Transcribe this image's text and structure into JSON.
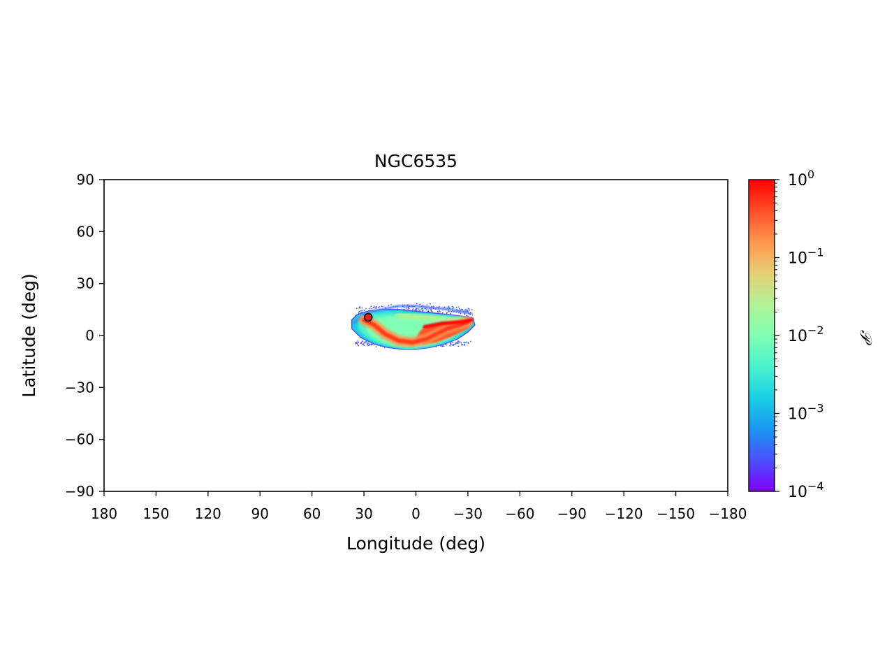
{
  "chart_data": {
    "type": "scatter",
    "title": "NGC6535",
    "xlabel": "Longitude (deg)",
    "ylabel": "Latitude (deg)",
    "xlim": [
      180,
      -180
    ],
    "ylim": [
      -90,
      90
    ],
    "xticks": [
      180,
      150,
      120,
      90,
      60,
      30,
      0,
      -30,
      -60,
      -90,
      -120,
      -150,
      -180
    ],
    "xtick_labels": [
      "180",
      "150",
      "120",
      "90",
      "60",
      "30",
      "0",
      "−30",
      "−60",
      "−90",
      "−120",
      "−150",
      "−180"
    ],
    "yticks": [
      90,
      60,
      30,
      0,
      -30,
      -60,
      -90
    ],
    "ytick_labels": [
      "90",
      "60",
      "30",
      "0",
      "−30",
      "−60",
      "−90"
    ],
    "colorbar": {
      "label": "𝒫",
      "scale": "log",
      "range": [
        0.0001,
        1
      ],
      "colormap": "rainbow",
      "ticks": [
        {
          "value": 1,
          "base": "10",
          "exp": "0"
        },
        {
          "value": 0.1,
          "base": "10",
          "exp": "−1"
        },
        {
          "value": 0.01,
          "base": "10",
          "exp": "−2"
        },
        {
          "value": 0.001,
          "base": "10",
          "exp": "−3"
        },
        {
          "value": 0.0001,
          "base": "10",
          "exp": "−4"
        }
      ]
    },
    "density_region": {
      "outline": [
        [
          37,
          9
        ],
        [
          34,
          12
        ],
        [
          28,
          14
        ],
        [
          20,
          15
        ],
        [
          10,
          15
        ],
        [
          0,
          14
        ],
        [
          -10,
          13
        ],
        [
          -20,
          12
        ],
        [
          -28,
          11
        ],
        [
          -33,
          10
        ],
        [
          -34,
          6
        ],
        [
          -30,
          2
        ],
        [
          -24,
          -2
        ],
        [
          -16,
          -5
        ],
        [
          -8,
          -7
        ],
        [
          0,
          -8
        ],
        [
          8,
          -8
        ],
        [
          16,
          -7
        ],
        [
          24,
          -5
        ],
        [
          32,
          -1
        ],
        [
          37,
          4
        ]
      ],
      "tail": [
        [
          36,
          7
        ],
        [
          30,
          12
        ],
        [
          25,
          14
        ],
        [
          20,
          15
        ],
        [
          10,
          17
        ],
        [
          0,
          17
        ],
        [
          -10,
          16
        ],
        [
          -20,
          15
        ],
        [
          -30,
          13
        ]
      ],
      "core_arc": [
        [
          30,
          9
        ],
        [
          24,
          6
        ],
        [
          18,
          1
        ],
        [
          10,
          -3
        ],
        [
          2,
          -4
        ],
        [
          -6,
          -2
        ],
        [
          -12,
          1
        ],
        [
          -18,
          4
        ],
        [
          -25,
          6
        ],
        [
          -30,
          8
        ]
      ],
      "core_patch": [
        [
          -5,
          5
        ],
        [
          -15,
          7
        ],
        [
          -28,
          8
        ],
        [
          -32,
          9
        ],
        [
          -30,
          4
        ],
        [
          -22,
          0
        ],
        [
          -12,
          -4
        ],
        [
          -4,
          -5
        ],
        [
          0,
          -2
        ],
        [
          -2,
          2
        ]
      ],
      "mid_band": [
        [
          10,
          12
        ],
        [
          0,
          11
        ],
        [
          -10,
          10
        ],
        [
          -20,
          9
        ],
        [
          -28,
          9
        ]
      ]
    },
    "cluster_position": {
      "lon": 27.5,
      "lat": 10.5
    }
  }
}
